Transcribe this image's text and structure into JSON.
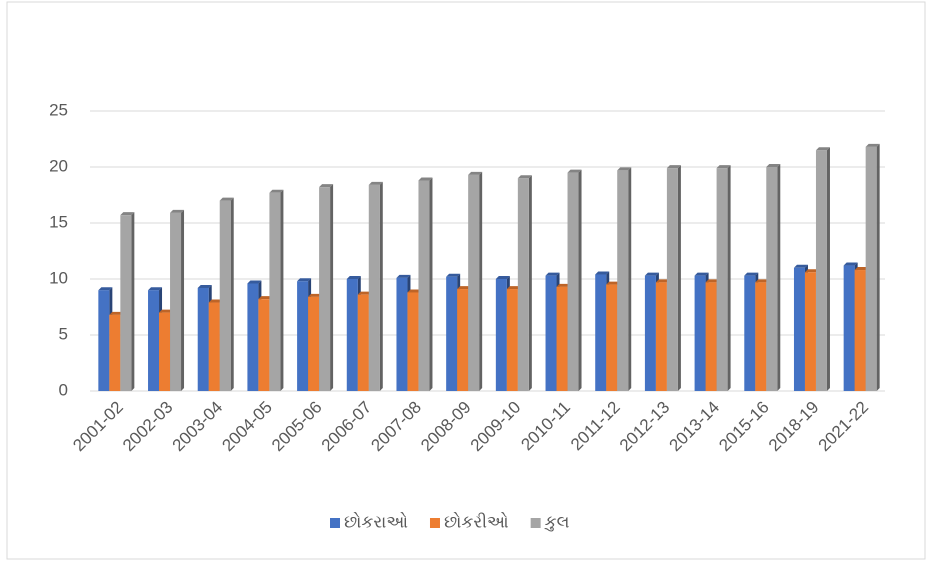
{
  "chart_data": {
    "type": "bar",
    "categories": [
      "2001-02",
      "2002-03",
      "2003-04",
      "2004-05",
      "2005-06",
      "2006-07",
      "2007-08",
      "2008-09",
      "2009-10",
      "2010-11",
      "2011-12",
      "2012-13",
      "2013-14",
      "2015-16",
      "2018-19",
      "2021-22"
    ],
    "series": [
      {
        "name": "છોકરાઓ",
        "color": "#4472c4",
        "values": [
          9.0,
          9.0,
          9.2,
          9.6,
          9.8,
          10.0,
          10.1,
          10.2,
          10.0,
          10.3,
          10.4,
          10.3,
          10.3,
          10.3,
          11.0,
          11.2
        ]
      },
      {
        "name": "છોકરીઓ",
        "color": "#ed7d31",
        "values": [
          6.8,
          7.0,
          7.9,
          8.2,
          8.4,
          8.6,
          8.8,
          9.1,
          9.1,
          9.3,
          9.5,
          9.7,
          9.7,
          9.7,
          10.6,
          10.8
        ]
      },
      {
        "name": "કુલ",
        "color": "#a5a5a5",
        "values": [
          15.7,
          15.9,
          17.0,
          17.7,
          18.2,
          18.4,
          18.8,
          19.3,
          19.0,
          19.5,
          19.7,
          19.9,
          19.9,
          20.0,
          21.5,
          21.8
        ]
      }
    ],
    "ylim": [
      0,
      25
    ],
    "yticks": [
      0,
      5,
      10,
      15,
      20,
      25
    ],
    "grid": true,
    "legend": "bottom"
  }
}
